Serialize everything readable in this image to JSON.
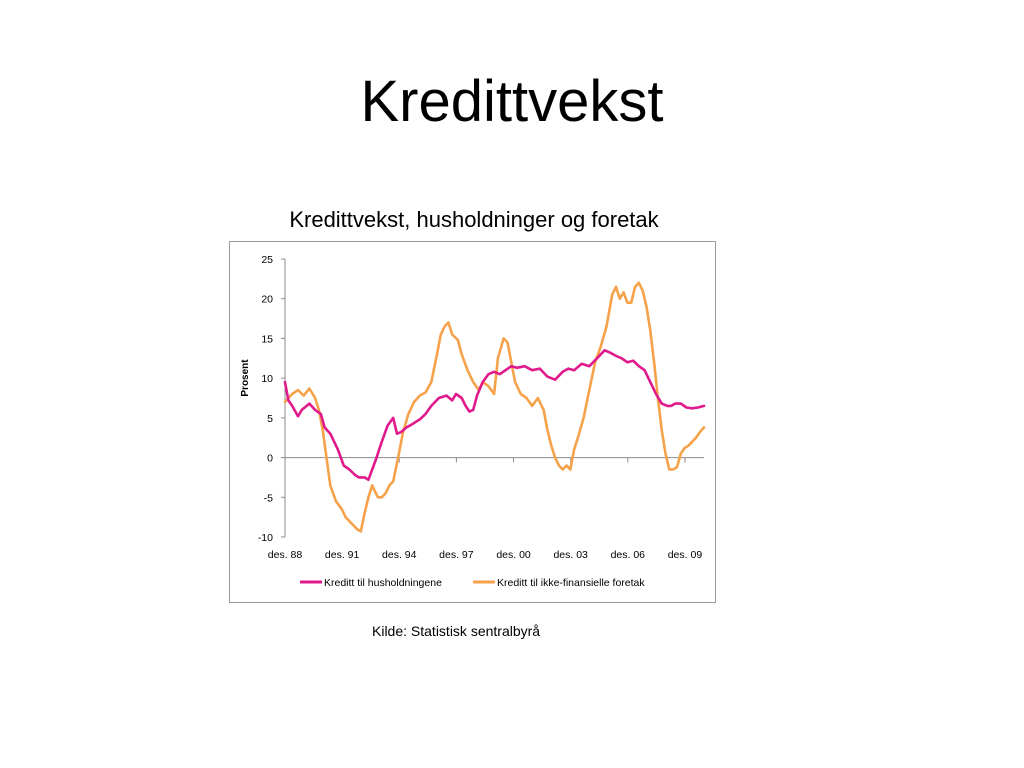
{
  "slide": {
    "title": "Kredittvekst"
  },
  "source": "Kilde: Statistisk sentralbyrå",
  "chart_data": {
    "type": "line",
    "title": "Kredittvekst, husholdninger og foretak",
    "xlabel": "",
    "ylabel": "Prosent",
    "ylim": [
      -10,
      25
    ],
    "yticks": [
      -10,
      -5,
      0,
      5,
      10,
      15,
      20,
      25
    ],
    "xlim": [
      1988.92,
      2010.92
    ],
    "xticks": [
      {
        "x": 1988.92,
        "label": "des. 88"
      },
      {
        "x": 1991.92,
        "label": "des. 91"
      },
      {
        "x": 1994.92,
        "label": "des. 94"
      },
      {
        "x": 1997.92,
        "label": "des. 97"
      },
      {
        "x": 2000.92,
        "label": "des. 00"
      },
      {
        "x": 2003.92,
        "label": "des. 03"
      },
      {
        "x": 2006.92,
        "label": "des. 06"
      },
      {
        "x": 2009.92,
        "label": "des. 09"
      }
    ],
    "grid": false,
    "legend": "bottom",
    "series": [
      {
        "name": "Kreditt til husholdningene",
        "color": "#e0198c",
        "x": [
          1988.92,
          1989.1,
          1989.3,
          1989.6,
          1989.8,
          1990.2,
          1990.5,
          1990.8,
          1991.0,
          1991.3,
          1991.7,
          1992.0,
          1992.3,
          1992.6,
          1992.8,
          1993.1,
          1993.3,
          1993.5,
          1993.7,
          1994.0,
          1994.3,
          1994.6,
          1994.8,
          1995.0,
          1995.3,
          1995.6,
          1996.0,
          1996.3,
          1996.6,
          1997.0,
          1997.4,
          1997.7,
          1997.9,
          1998.2,
          1998.4,
          1998.6,
          1998.8,
          1999.0,
          1999.3,
          1999.6,
          1999.9,
          2000.2,
          2000.5,
          2000.8,
          2001.1,
          2001.5,
          2001.9,
          2002.3,
          2002.7,
          2003.1,
          2003.5,
          2003.8,
          2004.1,
          2004.5,
          2004.9,
          2005.3,
          2005.7,
          2006.0,
          2006.3,
          2006.6,
          2006.9,
          2007.2,
          2007.5,
          2007.8,
          2008.1,
          2008.4,
          2008.7,
          2009.0,
          2009.2,
          2009.4,
          2009.7,
          2010.0,
          2010.3,
          2010.6,
          2010.92
        ],
        "values": [
          9.5,
          7.2,
          6.5,
          5.2,
          6.0,
          6.8,
          6.0,
          5.5,
          3.8,
          3.0,
          1.0,
          -1.0,
          -1.5,
          -2.2,
          -2.5,
          -2.5,
          -2.8,
          -1.5,
          -0.2,
          2.0,
          4.0,
          5.0,
          3.0,
          3.2,
          3.8,
          4.2,
          4.8,
          5.5,
          6.5,
          7.5,
          7.8,
          7.2,
          8.0,
          7.5,
          6.5,
          5.8,
          6.0,
          7.8,
          9.5,
          10.5,
          10.8,
          10.5,
          11.0,
          11.5,
          11.3,
          11.5,
          11.0,
          11.2,
          10.2,
          9.8,
          10.8,
          11.2,
          11.0,
          11.8,
          11.5,
          12.5,
          13.5,
          13.2,
          12.8,
          12.5,
          12.0,
          12.2,
          11.5,
          11.0,
          9.5,
          8.0,
          6.8,
          6.5,
          6.5,
          6.8,
          6.8,
          6.3,
          6.2,
          6.3,
          6.5
        ]
      },
      {
        "name": "Kreditt til ikke-finansielle foretak",
        "color": "#f5a24a",
        "x": [
          1988.92,
          1989.1,
          1989.3,
          1989.6,
          1989.9,
          1990.2,
          1990.5,
          1990.7,
          1990.9,
          1991.1,
          1991.3,
          1991.6,
          1991.9,
          1992.1,
          1992.3,
          1992.5,
          1992.7,
          1992.9,
          1993.1,
          1993.3,
          1993.5,
          1993.8,
          1994.0,
          1994.2,
          1994.4,
          1994.6,
          1994.9,
          1995.1,
          1995.4,
          1995.7,
          1996.0,
          1996.3,
          1996.6,
          1996.9,
          1997.1,
          1997.3,
          1997.5,
          1997.7,
          1998.0,
          1998.2,
          1998.5,
          1998.8,
          1999.1,
          1999.3,
          1999.6,
          1999.9,
          2000.1,
          2000.4,
          2000.6,
          2000.8,
          2001.0,
          2001.3,
          2001.6,
          2001.9,
          2002.2,
          2002.5,
          2002.7,
          2002.9,
          2003.1,
          2003.3,
          2003.5,
          2003.7,
          2003.9,
          2004.1,
          2004.3,
          2004.6,
          2004.9,
          2005.2,
          2005.5,
          2005.8,
          2006.1,
          2006.3,
          2006.5,
          2006.7,
          2006.9,
          2007.1,
          2007.3,
          2007.5,
          2007.7,
          2007.9,
          2008.1,
          2008.3,
          2008.5,
          2008.7,
          2008.9,
          2009.1,
          2009.3,
          2009.5,
          2009.7,
          2009.9,
          2010.1,
          2010.3,
          2010.5,
          2010.7,
          2010.92
        ],
        "values": [
          7.0,
          7.5,
          8.0,
          8.5,
          7.8,
          8.7,
          7.5,
          6.0,
          3.5,
          0.0,
          -3.5,
          -5.5,
          -6.5,
          -7.5,
          -8.0,
          -8.5,
          -9.0,
          -9.3,
          -7.0,
          -5.0,
          -3.5,
          -5.0,
          -5.0,
          -4.5,
          -3.5,
          -3.0,
          0.5,
          3.0,
          5.5,
          7.0,
          7.8,
          8.2,
          9.5,
          13.0,
          15.5,
          16.5,
          17.0,
          15.5,
          14.8,
          13.0,
          11.0,
          9.5,
          8.5,
          9.5,
          9.0,
          8.0,
          12.5,
          15.0,
          14.5,
          12.0,
          9.5,
          8.0,
          7.5,
          6.5,
          7.5,
          6.0,
          3.5,
          1.5,
          0.0,
          -1.0,
          -1.5,
          -1.0,
          -1.5,
          1.0,
          2.5,
          5.0,
          8.5,
          12.0,
          14.0,
          16.5,
          20.5,
          21.5,
          20.0,
          20.8,
          19.5,
          19.5,
          21.5,
          22.0,
          21.0,
          19.0,
          16.0,
          12.0,
          7.5,
          3.5,
          0.5,
          -1.5,
          -1.5,
          -1.2,
          0.5,
          1.2,
          1.5,
          2.0,
          2.5,
          3.2,
          3.8
        ]
      }
    ]
  }
}
